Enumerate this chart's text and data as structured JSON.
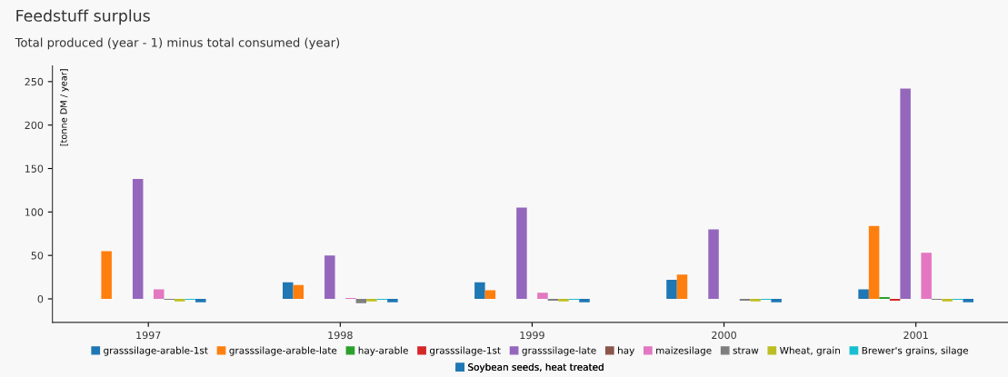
{
  "chart_data": {
    "type": "bar",
    "title": "Feedstuff surplus",
    "subtitle": "Total produced (year - 1) minus total consumed (year)",
    "ylabel": "[tonne DM / year]",
    "categories": [
      "1997",
      "1998",
      "1999",
      "2000",
      "2001"
    ],
    "series": [
      {
        "name": "grasssilage-arable-1st",
        "color": "#1f77b4",
        "values": [
          null,
          19,
          19,
          22,
          11
        ]
      },
      {
        "name": "grasssilage-arable-late",
        "color": "#ff7f0e",
        "values": [
          55,
          16,
          10,
          28,
          84
        ]
      },
      {
        "name": "hay-arable",
        "color": "#2ca02c",
        "values": [
          null,
          null,
          null,
          null,
          2
        ]
      },
      {
        "name": "grasssilage-1st",
        "color": "#d62728",
        "values": [
          null,
          null,
          null,
          null,
          -2
        ]
      },
      {
        "name": "grasssilage-late",
        "color": "#9467bd",
        "values": [
          138,
          50,
          105,
          80,
          242
        ]
      },
      {
        "name": "hay",
        "color": "#8c564b",
        "values": [
          null,
          null,
          null,
          null,
          null
        ]
      },
      {
        "name": "maizesilage",
        "color": "#e377c2",
        "values": [
          11,
          1,
          7,
          null,
          53
        ]
      },
      {
        "name": "straw",
        "color": "#7f7f7f",
        "values": [
          -1,
          -5,
          -2,
          -2,
          -1
        ]
      },
      {
        "name": "Wheat, grain",
        "color": "#bcbd22",
        "values": [
          -3,
          -3,
          -3,
          -3,
          -3
        ]
      },
      {
        "name": "Brewer's grains, silage",
        "color": "#17becf",
        "values": [
          -1,
          -1,
          -1,
          -1,
          -1
        ]
      },
      {
        "name": "Soybean seeds, heat treated",
        "color": "#1f77b4",
        "values": [
          -4,
          -4,
          -4,
          -4,
          -4
        ]
      }
    ],
    "ylim": [
      -27,
      268
    ],
    "yticks": [
      0,
      50,
      100,
      150,
      200,
      250
    ],
    "grid": false,
    "legend": "bottom"
  }
}
